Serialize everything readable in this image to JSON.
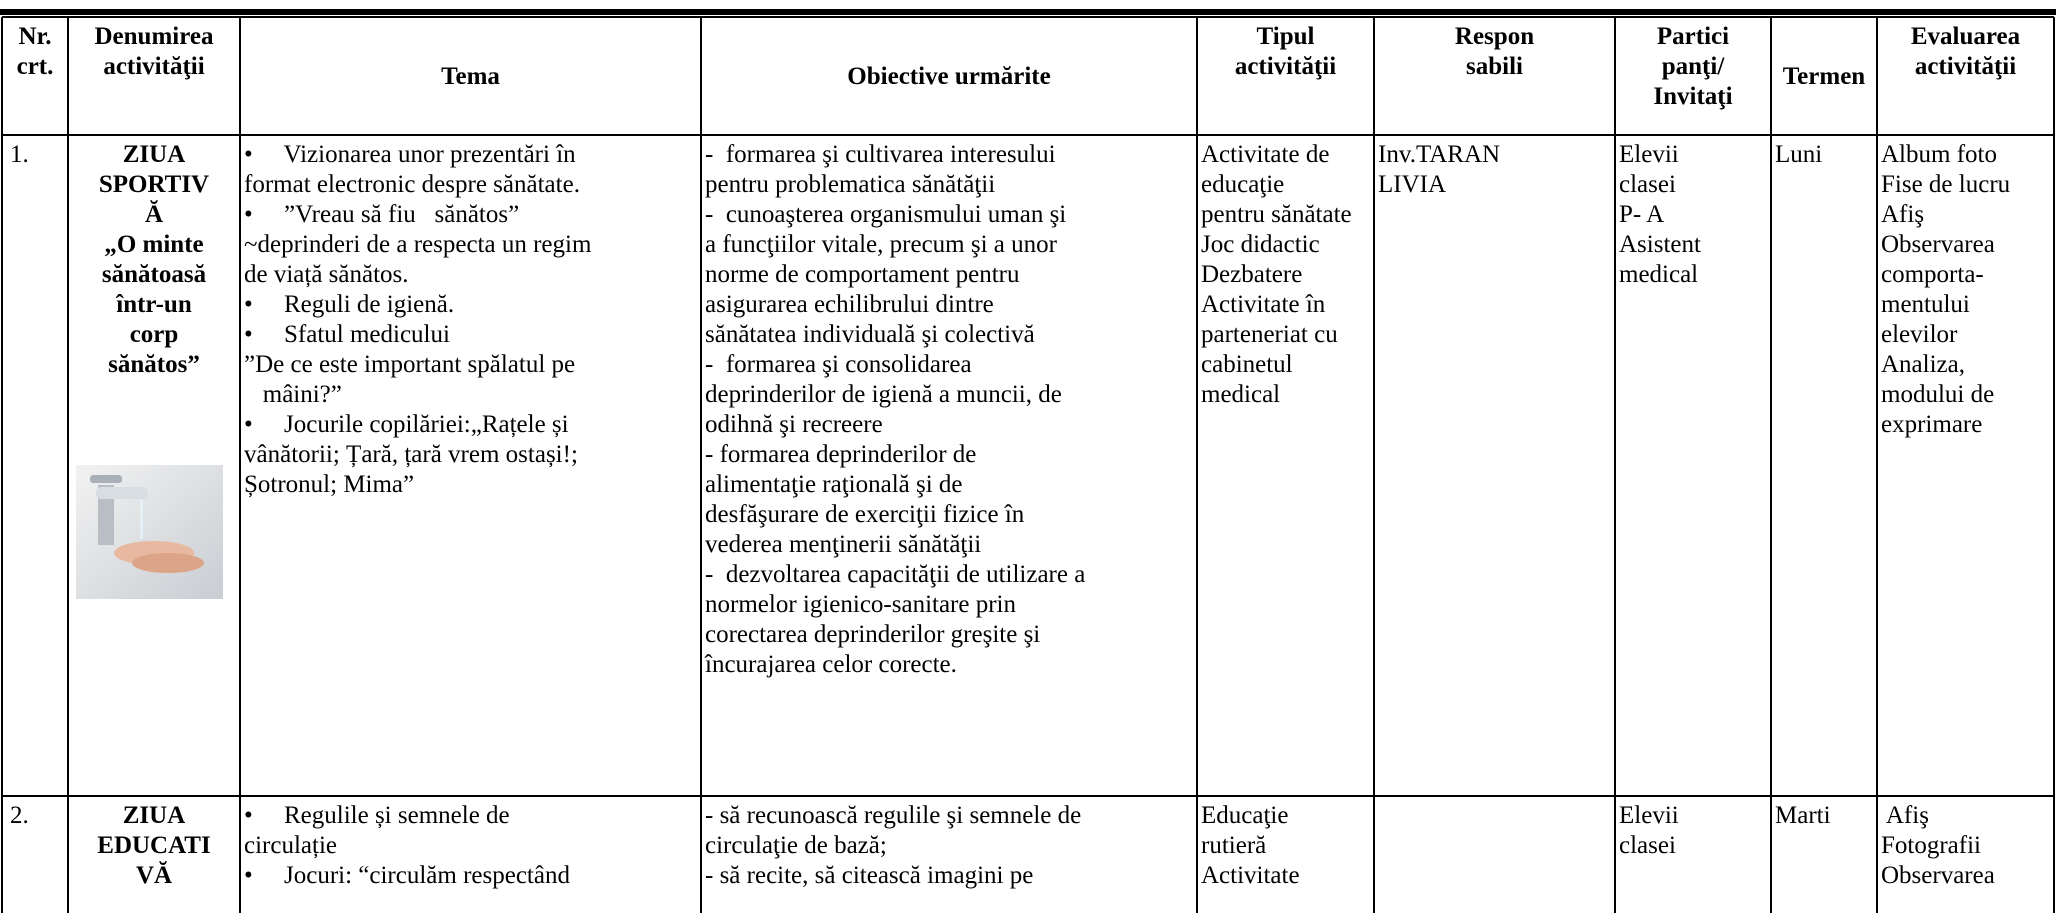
{
  "header": [
    [
      "Nr.",
      "crt."
    ],
    [
      "Denumirea",
      "activităţii"
    ],
    [
      "Tema"
    ],
    [
      "Obiective urmărite"
    ],
    [
      "Tipul",
      "activităţii"
    ],
    [
      "Respon",
      "sabili"
    ],
    [
      "Partici",
      "panţi/",
      "Invitaţi"
    ],
    [
      "Termen"
    ],
    [
      "Evaluarea",
      "activităţii"
    ]
  ],
  "rows": [
    [
      [
        "1."
      ],
      [
        "ZIUA",
        "SPORTIV",
        "Ă",
        "„O minte",
        "sănătoasă",
        "într-un",
        "corp",
        "sănătos”"
      ],
      [
        "•     Vizionarea unor prezentări în",
        "format electronic despre sănătate.",
        "•     ”Vreau să fiu   sănătos”",
        "~deprinderi de a respecta un regim",
        "de viață sănătos.",
        "•     Reguli de igienă.",
        "•     Sfatul medicului",
        "”De ce este important spălatul pe",
        "   mâini?”",
        "•     Jocurile copilăriei:„Rațele și",
        "vânătorii; Țară, țară vrem ostași!;",
        "Șotronul; Mima”"
      ],
      [
        "-  formarea şi cultivarea interesului",
        "pentru problematica sănătăţii",
        "-  cunoaşterea organismului uman şi",
        "a funcţiilor vitale, precum şi a unor",
        "norme de comportament pentru",
        "asigurarea echilibrului dintre",
        "sănătatea individuală şi colectivă",
        "-  formarea şi consolidarea",
        "deprinderilor de igienă a muncii, de",
        "odihnă şi recreere",
        "- formarea deprinderilor de",
        "alimentaţie raţională şi de",
        "desfăşurare de exerciţii fizice în",
        "vederea menţinerii sănătăţii",
        "-  dezvoltarea capacităţii de utilizare a",
        "normelor igienico-sanitare prin",
        "corectarea deprinderilor greşite şi",
        "încurajarea celor corecte."
      ],
      [
        "Activitate de",
        "educaţie",
        "pentru sănătate",
        "Joc didactic",
        "Dezbatere",
        "Activitate în",
        "parteneriat cu",
        "cabinetul",
        "medical"
      ],
      [
        "Inv.TARAN",
        "LIVIA"
      ],
      [
        "Elevii",
        "clasei",
        "P- A",
        "Asistent",
        "medical"
      ],
      [
        "Luni"
      ],
      [
        "Album foto",
        "Fise de lucru",
        "Afiş",
        "Observarea",
        "comporta-",
        "mentului",
        "elevilor",
        "Analiza,",
        "modului de",
        "exprimare"
      ]
    ],
    [
      [
        "2."
      ],
      [
        "ZIUA",
        "EDUCATI",
        "VĂ"
      ],
      [
        "•     Regulile și semnele de",
        "circulație",
        "•     Jocuri: “circulăm respectând"
      ],
      [
        "- să recunoască regulile şi semnele de",
        "circulaţie de bază;",
        "- să recite, să citească imagini pe"
      ],
      [
        "Educaţie",
        "rutieră",
        "Activitate"
      ],
      [],
      [
        "Elevii",
        "clasei"
      ],
      [
        "Marti"
      ],
      [
        " Afiş",
        "Fotografii",
        "Observarea"
      ]
    ]
  ]
}
